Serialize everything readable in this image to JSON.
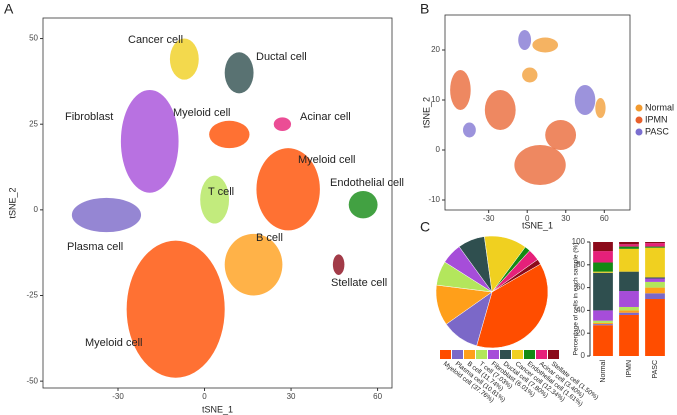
{
  "panel_labels": [
    "A",
    "B",
    "C"
  ],
  "chart_data": [
    {
      "type": "scatter",
      "xlabel": "tSNE_1",
      "ylabel": "tSNE_2",
      "xlim": [
        -56,
        65
      ],
      "ylim": [
        -52,
        56
      ],
      "xticks": [
        -30,
        0,
        30,
        60
      ],
      "yticks": [
        -50,
        -25,
        0,
        25,
        50
      ],
      "series": [
        {
          "name": "Cancer cell",
          "color": "#f0d020",
          "x": -7,
          "y": 44,
          "rx": 5,
          "ry": 6
        },
        {
          "name": "Ductal cell",
          "color": "#2f4f4f",
          "x": 12,
          "y": 40,
          "rx": 5,
          "ry": 6
        },
        {
          "name": "Fibroblast",
          "color": "#a64dd9",
          "x": -19,
          "y": 20,
          "rx": 10,
          "ry": 15
        },
        {
          "name": "Myeloid cell",
          "color": "#ff4d00",
          "x": 8.6,
          "y": 22,
          "rx": 7,
          "ry": 4
        },
        {
          "name": "Acinar cell",
          "color": "#e6207a",
          "x": 27,
          "y": 25,
          "rx": 3,
          "ry": 2
        },
        {
          "name": "Myeloid cell",
          "color": "#ff4d00",
          "x": 29,
          "y": 6,
          "rx": 11,
          "ry": 12
        },
        {
          "name": "T cell",
          "color": "#b3e65c",
          "x": 3.5,
          "y": 3,
          "rx": 5,
          "ry": 7
        },
        {
          "name": "Endothelial cell",
          "color": "#138a13",
          "x": 55,
          "y": 1.5,
          "rx": 5,
          "ry": 4
        },
        {
          "name": "Plasma cell",
          "color": "#7b68c8",
          "x": -34,
          "y": -1.5,
          "rx": 12,
          "ry": 5
        },
        {
          "name": "B cell",
          "color": "#ff9f1a",
          "x": 17,
          "y": -16,
          "rx": 10,
          "ry": 9
        },
        {
          "name": "Stellate cell",
          "color": "#8b0a1a",
          "x": 46.5,
          "y": -16,
          "rx": 2,
          "ry": 3
        },
        {
          "name": "Myeloid cell",
          "color": "#ff4d00",
          "x": -10,
          "y": -29,
          "rx": 17,
          "ry": 20
        }
      ]
    },
    {
      "type": "scatter",
      "xlabel": "tSNE_1",
      "ylabel": "tSNE_2",
      "xlim": [
        -64,
        80
      ],
      "ylim": [
        -12,
        27
      ],
      "xticks": [
        -30,
        0,
        30,
        60
      ],
      "yticks": [
        -10,
        0,
        10,
        20
      ],
      "series": [
        {
          "name": "Normal",
          "color": "#f29a2e",
          "clusters": [
            {
              "x": 14,
              "y": 21,
              "rx": 10,
              "ry": 1.5
            },
            {
              "x": 57,
              "y": 8.4,
              "rx": 4,
              "ry": 2
            },
            {
              "x": 2,
              "y": 15,
              "rx": 6,
              "ry": 1.5
            }
          ]
        },
        {
          "name": "IPMN",
          "color": "#e8602c",
          "clusters": [
            {
              "x": 10,
              "y": -3,
              "rx": 20,
              "ry": 4
            },
            {
              "x": -52,
              "y": 12,
              "rx": 8,
              "ry": 4
            },
            {
              "x": -21,
              "y": 8,
              "rx": 12,
              "ry": 4
            },
            {
              "x": 26,
              "y": 3,
              "rx": 12,
              "ry": 3
            }
          ]
        },
        {
          "name": "PASC",
          "color": "#7b6fd0",
          "clusters": [
            {
              "x": 45,
              "y": 10,
              "rx": 8,
              "ry": 3
            },
            {
              "x": -2,
              "y": 22,
              "rx": 5,
              "ry": 2
            },
            {
              "x": -45,
              "y": 4,
              "rx": 5,
              "ry": 1.5
            }
          ]
        }
      ]
    },
    {
      "type": "pie",
      "categories": [
        "Myeloid cell (37.76%)",
        "Plasma cell (10.81%)",
        "B cell (11.74%)",
        "T cell (7.03%)",
        "Fibroblast (6.01%)",
        "Ductal cell (7.80%)",
        "Cancer cell (12.34%)",
        "Endothelial cell (1.61%)",
        "Acinar cell (3.40%)",
        "Stellate cell (1.50%)"
      ],
      "values": [
        37.76,
        10.81,
        11.74,
        7.03,
        6.01,
        7.8,
        12.34,
        1.61,
        3.4,
        1.5
      ],
      "colors": [
        "#ff4d00",
        "#7b68c8",
        "#ff9f1a",
        "#b3e65c",
        "#a64dd9",
        "#2f4f4f",
        "#f0d020",
        "#138a13",
        "#e6207a",
        "#8b0a1a"
      ]
    },
    {
      "type": "stacked_bar",
      "ylabel": "Percentage of cells in each sample (%)",
      "categories": [
        "Normal",
        "IPMN",
        "PASC"
      ],
      "ylim": [
        0,
        100
      ],
      "yticks": [
        0,
        20,
        40,
        60,
        80,
        100
      ],
      "series": [
        {
          "color": "#ff4d00",
          "values": [
            27,
            36,
            50
          ]
        },
        {
          "color": "#7b68c8",
          "values": [
            1,
            2,
            5
          ]
        },
        {
          "color": "#ff9f1a",
          "values": [
            1,
            2,
            5
          ]
        },
        {
          "color": "#b3e65c",
          "values": [
            2,
            3,
            5
          ]
        },
        {
          "color": "#a64dd9",
          "values": [
            9,
            14,
            3
          ]
        },
        {
          "color": "#2f4f4f",
          "values": [
            33,
            17,
            1
          ]
        },
        {
          "color": "#f0d020",
          "values": [
            1,
            20,
            26
          ]
        },
        {
          "color": "#138a13",
          "values": [
            8,
            2,
            1
          ]
        },
        {
          "color": "#e6207a",
          "values": [
            10,
            2,
            3
          ]
        },
        {
          "color": "#8b0a1a",
          "values": [
            8,
            2,
            1
          ]
        }
      ]
    }
  ]
}
